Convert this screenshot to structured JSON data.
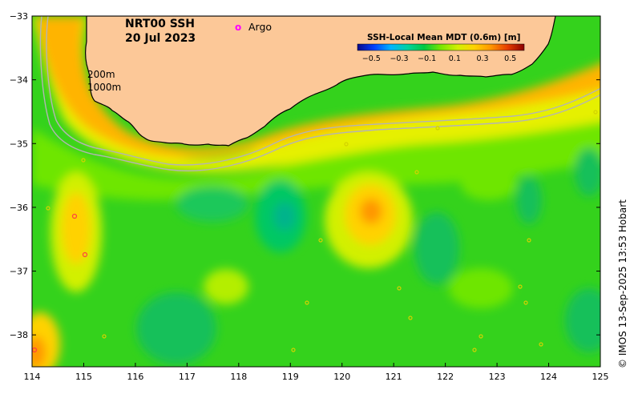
{
  "title": {
    "product": "NRT00 SSH",
    "date": "20 Jul 2023"
  },
  "legend": {
    "argo_symbol": "o",
    "argo_label": "Argo",
    "argo_color": "#ff00ff"
  },
  "colorbar": {
    "title": "SSH-Local Mean MDT (0.6m) [m]",
    "ticks": [
      "−0.5",
      "−0.3",
      "−0.1",
      "0.1",
      "0.3",
      "0.5"
    ],
    "range": [
      -0.6,
      0.6
    ],
    "colors": [
      "#0a0a8a",
      "#0040ff",
      "#00b4ff",
      "#00d2a0",
      "#00c840",
      "#78e600",
      "#d2f000",
      "#ffd200",
      "#ff9600",
      "#e63c00",
      "#8c0000"
    ]
  },
  "contour_labels": {
    "shallow": "200m",
    "deep": "1000m"
  },
  "axes": {
    "x_ticks": [
      "114",
      "115",
      "116",
      "117",
      "118",
      "119",
      "120",
      "121",
      "122",
      "123",
      "124",
      "125"
    ],
    "y_ticks": [
      "−33",
      "−34",
      "−35",
      "−36",
      "−37",
      "−38"
    ],
    "x_range": [
      114,
      125
    ],
    "y_range": [
      -38.5,
      -33
    ]
  },
  "credit": "© IMOS 13-Sep-2025 13:53 Hobart",
  "colors": {
    "land": "#fcc898",
    "coast": "#000000",
    "isobath": "#b4b4b4",
    "sea_base": "#32d21e"
  }
}
